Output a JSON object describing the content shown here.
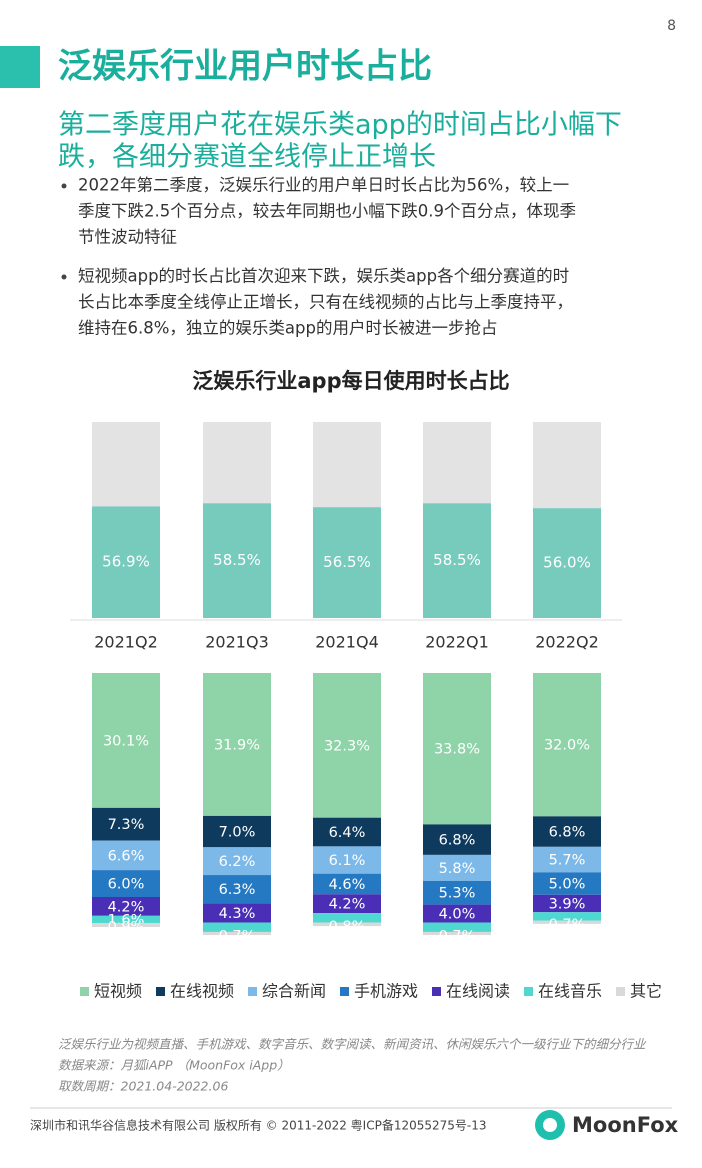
{
  "page_number": "8",
  "title": "泛娱乐行业用户时长占比",
  "subtitle": [
    "第二季度用户花在娱乐类app的时间占比小幅下",
    "跌，各细分赛道全线停止正增长"
  ],
  "bullets": [
    [
      "2022年第二季度，泛娱乐行业的用户单日时长占比为56%，较上一",
      "季度下跌2.5个百分点，较去年同期也小幅下跌0.9个百分点，体现季",
      "节性波动特征"
    ],
    [
      "短视频app的时长占比首次迎来下跌，娱乐类app各个细分赛道的时",
      "长占比本季度全线停止正增长，只有在线视频的占比与上季度持平，",
      "维持在6.8%，独立的娱乐类app的用户时长被进一步抢占"
    ]
  ],
  "chart_data": [
    {
      "type": "bar",
      "title": "泛娱乐行业app每日使用时长占比",
      "categories": [
        "2021Q2",
        "2021Q3",
        "2021Q4",
        "2022Q1",
        "2022Q2"
      ],
      "values": [
        56.9,
        58.5,
        56.5,
        58.5,
        56.0
      ],
      "value_labels": [
        "56.9%",
        "58.5%",
        "56.5%",
        "58.5%",
        "56.0%"
      ],
      "color": "#76cbbd",
      "ylim": [
        0,
        100
      ]
    },
    {
      "type": "stacked_bar",
      "series": [
        {
          "name": "短视频",
          "color": "#8fd4a8",
          "values": [
            30.1,
            31.9,
            32.3,
            33.8,
            32.0
          ],
          "value_labels": [
            "30.1%",
            "31.9%",
            "32.3%",
            "33.8%",
            "32.0%"
          ]
        },
        {
          "name": "在线视频",
          "color": "#0e3a5e",
          "values": [
            7.3,
            7.0,
            6.4,
            6.8,
            6.8
          ],
          "value_labels": [
            "7.3%",
            "7.0%",
            "6.4%",
            "6.8%",
            "6.8%"
          ]
        },
        {
          "name": "综合新闻",
          "color": "#7cb9e8",
          "values": [
            6.6,
            6.2,
            6.1,
            5.8,
            5.7
          ],
          "value_labels": [
            "6.6%",
            "6.2%",
            "6.1%",
            "5.8%",
            "5.7%"
          ]
        },
        {
          "name": "手机游戏",
          "color": "#2479c2",
          "values": [
            6.0,
            6.3,
            4.6,
            5.3,
            5.0
          ],
          "value_labels": [
            "6.0%",
            "6.3%",
            "4.6%",
            "5.3%",
            "5.0%"
          ]
        },
        {
          "name": "在线阅读",
          "color": "#4a2fb6",
          "values": [
            4.2,
            4.3,
            4.2,
            4.0,
            3.9
          ],
          "value_labels": [
            "4.2%",
            "4.3%",
            "4.2%",
            "4.0%",
            "3.9%"
          ]
        },
        {
          "name": "在线音乐",
          "color": "#4fd8d0",
          "values": [
            1.6,
            2.1,
            2.1,
            2.1,
            1.9
          ],
          "value_labels": [
            "1.6%",
            null,
            null,
            null,
            null
          ]
        },
        {
          "name": "其它",
          "color": "#d9d9d9",
          "values": [
            0.9,
            0.7,
            0.8,
            0.7,
            0.7
          ],
          "value_labels": [
            "0.9%",
            "0.7%",
            "0.8%",
            "0.7%",
            "0.7%"
          ]
        }
      ]
    }
  ],
  "notes": [
    "泛娱乐行业为视频直播、手机游戏、数字音乐、数字阅读、新闻资讯、休闲娱乐六个一级行业下的细分行业",
    "数据来源：月狐iAPP （MoonFox iApp）",
    "取数周期：2021.04-2022.06"
  ],
  "footer": "深圳市和讯华谷信息技术有限公司 版权所有 © 2011-2022 粤ICP备12055275号-13",
  "logo": "MoonFox"
}
